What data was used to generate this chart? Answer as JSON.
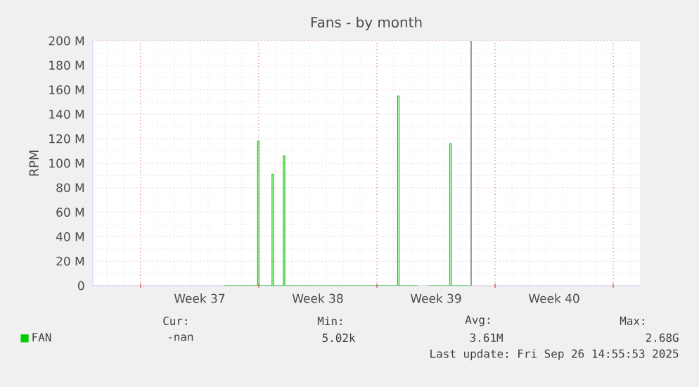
{
  "chart_data": {
    "type": "line",
    "title": "Fans - by month",
    "ylabel": "RPM",
    "xlim": [
      "2025-09-05T04:05",
      "2025-10-07T13:55"
    ],
    "ylim": [
      0,
      200000000
    ],
    "xticks": [
      {
        "value": "2025-09-08",
        "label": null
      },
      {
        "value": "2025-09-11T12:00",
        "label": "Week 37"
      },
      {
        "value": "2025-09-15",
        "label": null
      },
      {
        "value": "2025-09-18T12:00",
        "label": "Week 38"
      },
      {
        "value": "2025-09-22",
        "label": null
      },
      {
        "value": "2025-09-25T12:00",
        "label": "Week 39"
      },
      {
        "value": "2025-09-29",
        "label": null
      },
      {
        "value": "2025-10-02T12:00",
        "label": "Week 40"
      },
      {
        "value": "2025-10-06",
        "label": null
      }
    ],
    "yticks": [
      0,
      {
        "value": 20000000,
        "label": "20 M"
      },
      {
        "value": 40000000,
        "label": "40 M"
      },
      {
        "value": 60000000,
        "label": "60 M"
      },
      {
        "value": 80000000,
        "label": "80 M"
      },
      {
        "value": 100000000,
        "label": "100 M"
      },
      {
        "value": 120000000,
        "label": "120 M"
      },
      {
        "value": 140000000,
        "label": "140 M"
      },
      {
        "value": 160000000,
        "label": "160 M"
      },
      {
        "value": 180000000,
        "label": "180 M"
      },
      {
        "value": 200000000,
        "label": "200 M"
      }
    ],
    "grid": true,
    "legend": "bottom left",
    "series": [
      {
        "name": "FAN",
        "color": "#00cc00",
        "x": [
          "2025-09-12T22:05",
          "2025-09-14T22:17",
          "2025-09-14T22:17",
          "2025-09-15T00:17",
          "2025-09-15T00:17",
          "2025-09-15T18:55",
          "2025-09-15T18:55",
          "2025-09-15T20:55",
          "2025-09-15T20:55",
          "2025-09-16T11:00",
          "2025-09-16T11:00",
          "2025-09-16T13:00",
          "2025-09-16T13:00",
          "2025-09-23T05:29",
          "2025-09-23T05:29",
          "2025-09-23T07:29",
          "2025-09-23T07:29",
          "2025-09-24T10:05",
          "2025-09-24T18:00",
          "2025-09-25T01:55",
          "2025-09-26T07:38",
          "2025-09-26T07:38",
          "2025-09-26T09:38",
          "2025-09-26T09:38",
          "2025-09-27T12:00"
        ],
        "values": [
          0,
          0,
          118000000,
          118000000,
          0,
          0,
          91000000,
          91000000,
          0,
          0,
          106000000,
          106000000,
          0,
          0,
          155000000,
          155000000,
          0,
          0,
          null,
          0,
          0,
          116000000,
          116000000,
          0,
          0
        ]
      }
    ],
    "ref_lines": [
      {
        "axis": "x",
        "value": "2025-09-27T13:55",
        "color": "#808080"
      }
    ],
    "annotations": [
      "Cur:",
      "Min:",
      "Avg:",
      "Max:",
      "-nan",
      "5.02k",
      "3.61M",
      "2.68G",
      "Last update: Fri Sep 26 14:55:53 2025"
    ]
  }
}
